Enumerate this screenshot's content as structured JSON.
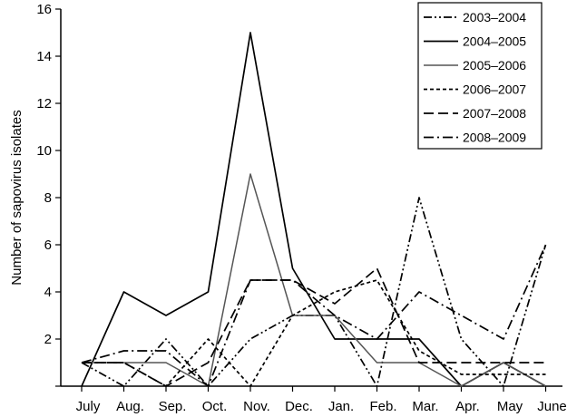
{
  "chart_data": {
    "type": "line",
    "categories": [
      "July",
      "Aug.",
      "Sep.",
      "Oct.",
      "Nov.",
      "Dec.",
      "Jan.",
      "Feb.",
      "Mar.",
      "Apr.",
      "May",
      "June"
    ],
    "ylabel": "Number of sapovirus isolates",
    "xlabel": "",
    "ylim": [
      0,
      16
    ],
    "yticks": [
      0,
      2,
      4,
      6,
      8,
      10,
      12,
      14,
      16
    ],
    "ytick_labels": [
      "",
      "2",
      "4",
      "6",
      "8",
      "10",
      "12",
      "14",
      "16"
    ],
    "legend_position": "top-right",
    "grid": false,
    "series": [
      {
        "name": "2003–2004",
        "dash": "dash-dot-dot",
        "color": "#000000",
        "values": [
          1,
          0,
          2,
          0,
          2,
          3,
          3,
          0,
          8,
          2,
          0,
          6
        ]
      },
      {
        "name": "2004–2005",
        "dash": "solid",
        "color": "#000000",
        "values": [
          0,
          4,
          3,
          4,
          15,
          5,
          2,
          2,
          2,
          0,
          1,
          0
        ]
      },
      {
        "name": "2005–2006",
        "dash": "solid-gray",
        "color": "#555555",
        "values": [
          1,
          1,
          1,
          0,
          9,
          3,
          3,
          1,
          1,
          0,
          1,
          0
        ]
      },
      {
        "name": "2006–2007",
        "dash": "short-dash",
        "color": "#000000",
        "values": [
          1,
          1,
          0,
          2,
          0,
          3,
          4,
          4.5,
          1.5,
          0.5,
          0.5,
          0.5
        ]
      },
      {
        "name": "2007–2008",
        "dash": "long-dash",
        "color": "#000000",
        "values": [
          1,
          1,
          0,
          1,
          4.5,
          4.5,
          3.5,
          5,
          1,
          1,
          1,
          1
        ]
      },
      {
        "name": "2008–2009",
        "dash": "dash-dot",
        "color": "#000000",
        "values": [
          1,
          1.5,
          1.5,
          0,
          4.5,
          4.5,
          3,
          2,
          4,
          3,
          2,
          6
        ]
      }
    ]
  }
}
